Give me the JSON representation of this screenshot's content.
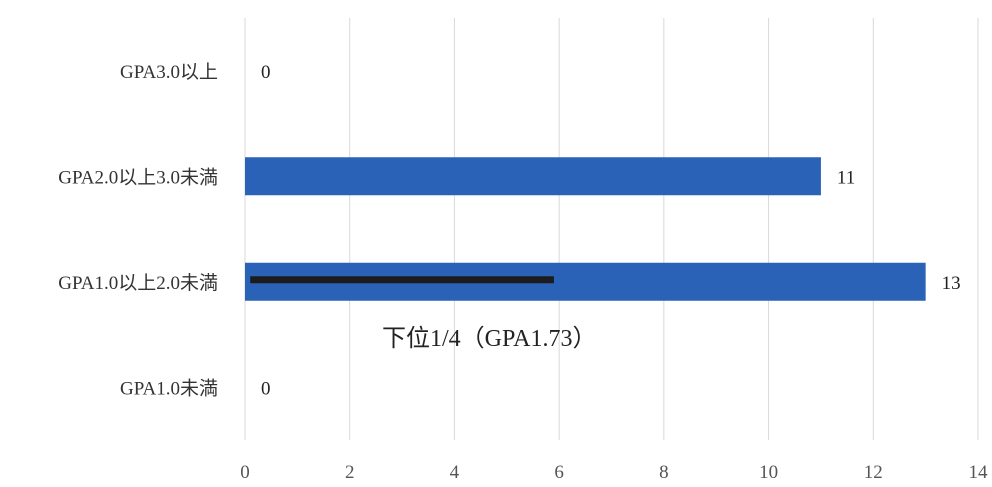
{
  "chart_data": {
    "type": "bar",
    "orientation": "horizontal",
    "categories": [
      "GPA3.0以上",
      "GPA2.0以上3.0未満",
      "GPA1.0以上2.0未満",
      "GPA1.0未満"
    ],
    "values": [
      0,
      11,
      13,
      0
    ],
    "data_labels": [
      "0",
      "11",
      "13",
      "0"
    ],
    "xlim": [
      0,
      14
    ],
    "x_ticks": [
      0,
      2,
      4,
      6,
      8,
      10,
      12,
      14
    ],
    "x_tick_labels": [
      "0",
      "2",
      "4",
      "6",
      "8",
      "10",
      "12",
      "14"
    ],
    "grid": "vertical",
    "bar_color": "#2a62b8",
    "annotation": {
      "text": "下位1/4（GPA1.73）",
      "category": "GPA1.0以上2.0未満",
      "x_start": 0.1,
      "x_end": 5.9,
      "color": "#1c1c1c"
    }
  }
}
